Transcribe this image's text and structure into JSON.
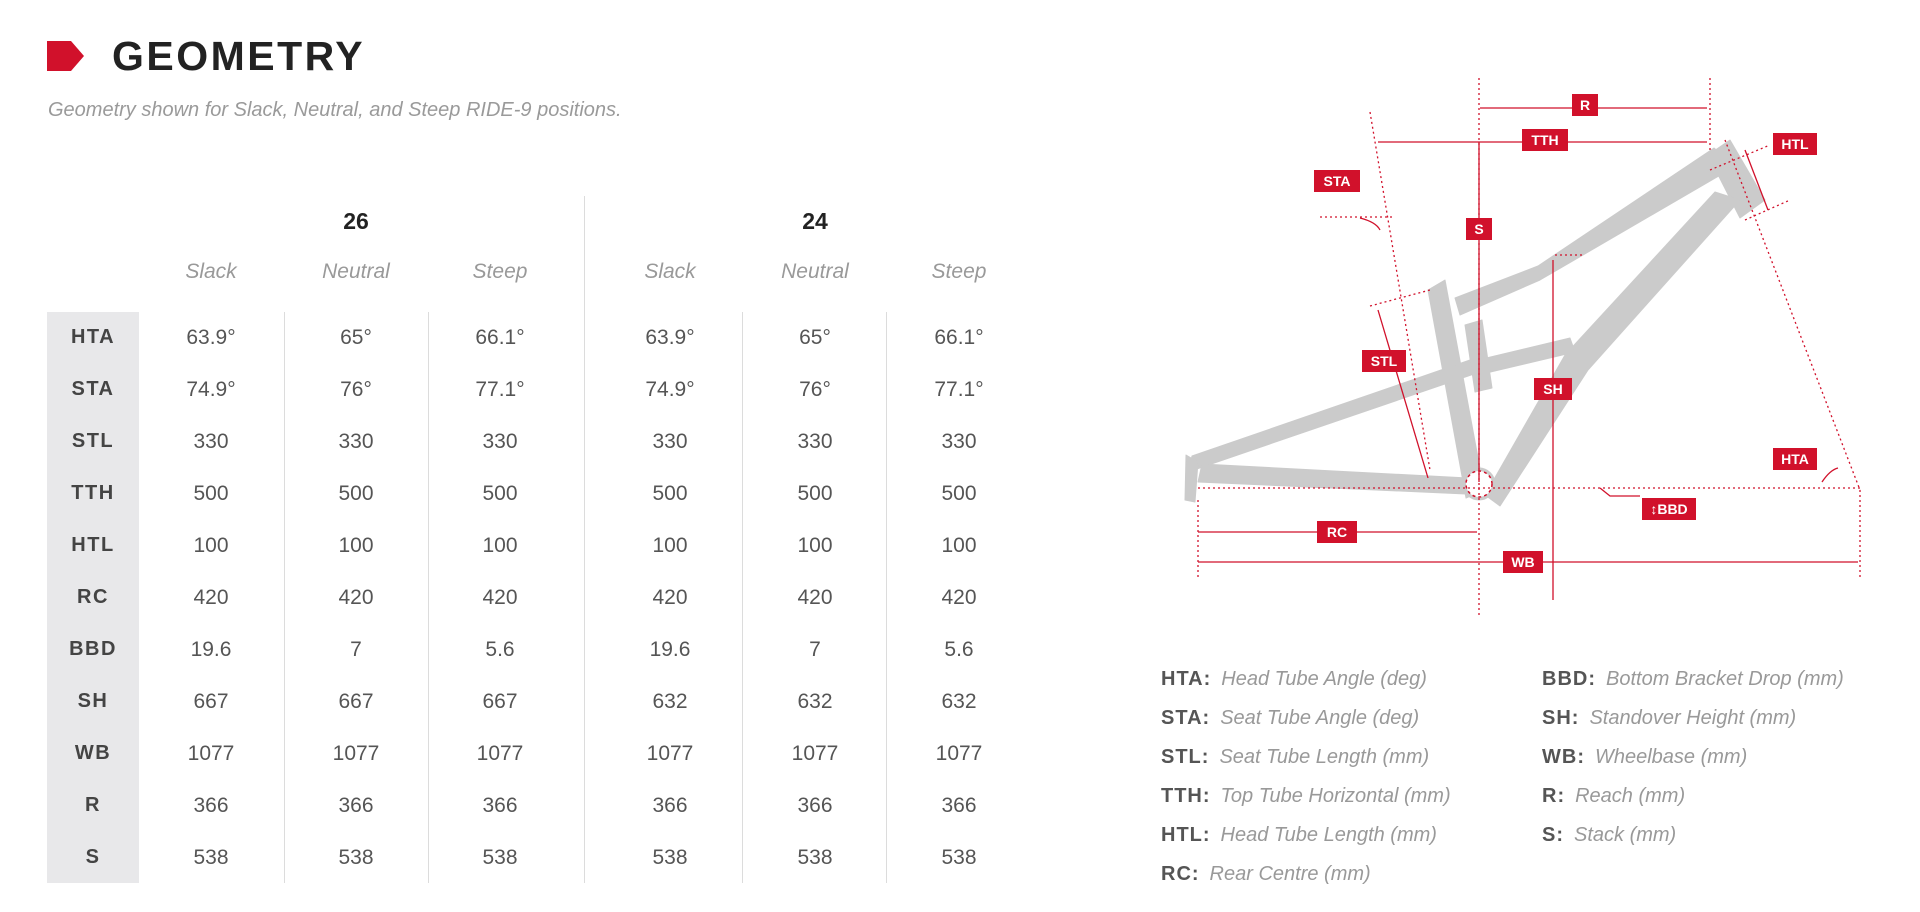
{
  "header": {
    "title": "GEOMETRY",
    "subtitle": "Geometry shown for Slack, Neutral, and Steep RIDE-9 positions."
  },
  "colors": {
    "accent": "#d1112b",
    "frame": "#cbcbcb",
    "label_bg": "#e8e8ea"
  },
  "table": {
    "sizes": [
      "26",
      "24"
    ],
    "positions": [
      "Slack",
      "Neutral",
      "Steep",
      "Slack",
      "Neutral",
      "Steep"
    ],
    "rows": [
      {
        "label": "HTA",
        "values": [
          "63.9°",
          "65°",
          "66.1°",
          "63.9°",
          "65°",
          "66.1°"
        ]
      },
      {
        "label": "STA",
        "values": [
          "74.9°",
          "76°",
          "77.1°",
          "74.9°",
          "76°",
          "77.1°"
        ]
      },
      {
        "label": "STL",
        "values": [
          "330",
          "330",
          "330",
          "330",
          "330",
          "330"
        ]
      },
      {
        "label": "TTH",
        "values": [
          "500",
          "500",
          "500",
          "500",
          "500",
          "500"
        ]
      },
      {
        "label": "HTL",
        "values": [
          "100",
          "100",
          "100",
          "100",
          "100",
          "100"
        ]
      },
      {
        "label": "RC",
        "values": [
          "420",
          "420",
          "420",
          "420",
          "420",
          "420"
        ]
      },
      {
        "label": "BBD",
        "values": [
          "19.6",
          "7",
          "5.6",
          "19.6",
          "7",
          "5.6"
        ]
      },
      {
        "label": "SH",
        "values": [
          "667",
          "667",
          "667",
          "632",
          "632",
          "632"
        ]
      },
      {
        "label": "WB",
        "values": [
          "1077",
          "1077",
          "1077",
          "1077",
          "1077",
          "1077"
        ]
      },
      {
        "label": "R",
        "values": [
          "366",
          "366",
          "366",
          "366",
          "366",
          "366"
        ]
      },
      {
        "label": "S",
        "values": [
          "538",
          "538",
          "538",
          "538",
          "538",
          "538"
        ]
      }
    ]
  },
  "diagram": {
    "labels": {
      "r": "R",
      "tth": "TTH",
      "htl": "HTL",
      "sta": "STA",
      "s": "S",
      "stl": "STL",
      "sh": "SH",
      "hta": "HTA",
      "bbd": "↕BBD",
      "rc": "RC",
      "wb": "WB"
    }
  },
  "legend": [
    {
      "code": "HTA:",
      "desc": "Head Tube Angle (deg)"
    },
    {
      "code": "STA:",
      "desc": "Seat Tube Angle (deg)"
    },
    {
      "code": "STL:",
      "desc": "Seat Tube Length (mm)"
    },
    {
      "code": "TTH:",
      "desc": "Top Tube Horizontal (mm)"
    },
    {
      "code": "HTL:",
      "desc": "Head Tube Length (mm)"
    },
    {
      "code": "RC:",
      "desc": "Rear Centre (mm)"
    },
    {
      "code": "BBD:",
      "desc": "Bottom Bracket Drop (mm)"
    },
    {
      "code": "SH:",
      "desc": "Standover Height (mm)"
    },
    {
      "code": "WB:",
      "desc": "Wheelbase (mm)"
    },
    {
      "code": "R:",
      "desc": "Reach (mm)"
    },
    {
      "code": "S:",
      "desc": "Stack (mm)"
    }
  ]
}
